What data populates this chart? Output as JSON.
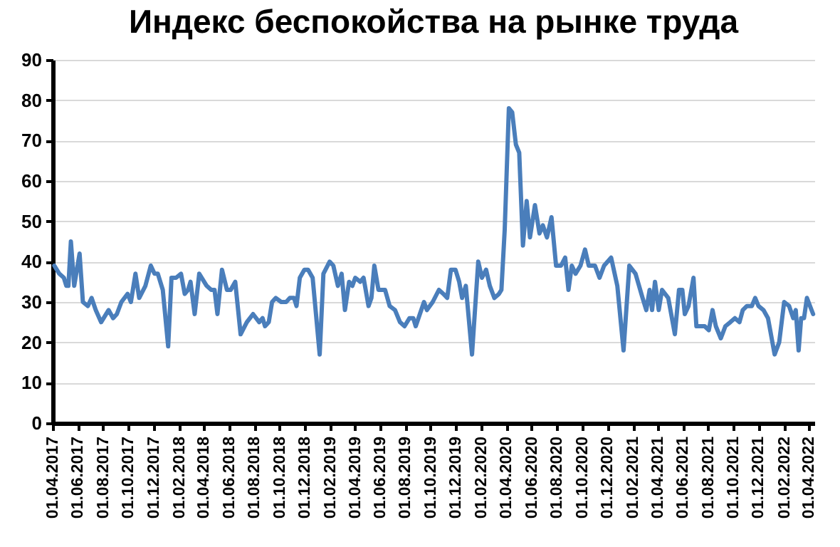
{
  "chart_data": {
    "type": "line",
    "title": "Индекс беспокойства на рынке труда",
    "x": [
      "2017-04-05",
      "2017-04-17",
      "2017-04-28",
      "2017-05-04",
      "2017-05-09",
      "2017-05-15",
      "2017-05-23",
      "2017-06-05",
      "2017-06-13",
      "2017-06-25",
      "2017-07-04",
      "2017-07-14",
      "2017-07-27",
      "2017-08-14",
      "2017-08-25",
      "2017-09-03",
      "2017-09-14",
      "2017-09-29",
      "2017-10-07",
      "2017-10-18",
      "2017-10-27",
      "2017-11-11",
      "2017-11-24",
      "2017-12-03",
      "2017-12-11",
      "2017-12-23",
      "2018-01-05",
      "2018-01-13",
      "2018-01-24",
      "2018-02-05",
      "2018-02-14",
      "2018-02-22",
      "2018-02-28",
      "2018-03-10",
      "2018-03-21",
      "2018-04-08",
      "2018-04-19",
      "2018-04-27",
      "2018-05-04",
      "2018-05-15",
      "2018-05-27",
      "2018-06-05",
      "2018-06-16",
      "2018-06-29",
      "2018-07-14",
      "2018-07-29",
      "2018-08-13",
      "2018-08-21",
      "2018-08-27",
      "2018-09-05",
      "2018-09-13",
      "2018-09-22",
      "2018-10-05",
      "2018-10-17",
      "2018-10-26",
      "2018-11-05",
      "2018-11-11",
      "2018-11-19",
      "2018-11-30",
      "2018-12-09",
      "2018-12-20",
      "2019-01-06",
      "2019-01-15",
      "2019-01-30",
      "2019-02-08",
      "2019-02-19",
      "2019-02-28",
      "2019-03-08",
      "2019-03-18",
      "2019-03-26",
      "2019-04-02",
      "2019-04-14",
      "2019-04-22",
      "2019-05-04",
      "2019-05-11",
      "2019-05-18",
      "2019-05-28",
      "2019-06-13",
      "2019-06-24",
      "2019-07-07",
      "2019-07-19",
      "2019-07-30",
      "2019-08-11",
      "2019-08-20",
      "2019-08-26",
      "2019-09-15",
      "2019-09-22",
      "2019-10-06",
      "2019-10-21",
      "2019-11-01",
      "2019-11-10",
      "2019-11-19",
      "2019-11-30",
      "2019-12-09",
      "2019-12-16",
      "2019-12-25",
      "2020-01-09",
      "2020-01-24",
      "2020-02-02",
      "2020-02-12",
      "2020-02-21",
      "2020-03-03",
      "2020-03-14",
      "2020-03-20",
      "2020-03-28",
      "2020-04-07",
      "2020-04-15",
      "2020-04-24",
      "2020-05-02",
      "2020-05-11",
      "2020-05-20",
      "2020-05-28",
      "2020-06-09",
      "2020-06-20",
      "2020-06-28",
      "2020-07-08",
      "2020-07-19",
      "2020-07-30",
      "2020-08-11",
      "2020-08-21",
      "2020-08-29",
      "2020-09-06",
      "2020-09-15",
      "2020-09-27",
      "2020-10-08",
      "2020-10-17",
      "2020-11-01",
      "2020-11-12",
      "2020-11-23",
      "2020-12-10",
      "2020-12-25",
      "2021-01-09",
      "2021-01-23",
      "2021-02-07",
      "2021-02-24",
      "2021-03-05",
      "2021-03-13",
      "2021-03-19",
      "2021-03-26",
      "2021-04-04",
      "2021-04-12",
      "2021-04-27",
      "2021-05-13",
      "2021-05-23",
      "2021-05-31",
      "2021-06-06",
      "2021-06-15",
      "2021-06-27",
      "2021-07-04",
      "2021-07-14",
      "2021-07-24",
      "2021-08-03",
      "2021-08-12",
      "2021-08-20",
      "2021-09-01",
      "2021-09-12",
      "2021-09-24",
      "2021-10-05",
      "2021-10-16",
      "2021-10-24",
      "2021-11-03",
      "2021-11-15",
      "2021-11-23",
      "2021-12-01",
      "2021-12-13",
      "2021-12-24",
      "2022-01-09",
      "2022-01-20",
      "2022-02-01",
      "2022-02-13",
      "2022-02-23",
      "2022-03-01",
      "2022-03-08",
      "2022-03-14",
      "2022-03-21",
      "2022-03-28",
      "2022-04-12"
    ],
    "series": [
      {
        "color": "#4a7ebb",
        "values": [
          39,
          37,
          36,
          34,
          34,
          45,
          34,
          42,
          30,
          29,
          31,
          28,
          25,
          28,
          26,
          27,
          30,
          32,
          30,
          37,
          31,
          34,
          39,
          37,
          37,
          33,
          19,
          36,
          36,
          37,
          32,
          33,
          35,
          27,
          37,
          34,
          33,
          33,
          27,
          38,
          33,
          33,
          35,
          22,
          25,
          27,
          25,
          26,
          24,
          25,
          30,
          31,
          30,
          30,
          31,
          31,
          29,
          36,
          38,
          38,
          36,
          17,
          37,
          40,
          39,
          34,
          37,
          28,
          35,
          34,
          36,
          35,
          36,
          29,
          31,
          39,
          33,
          33,
          29,
          28,
          25,
          24,
          26,
          26,
          24,
          30,
          28,
          30,
          33,
          32,
          31,
          38,
          38,
          35,
          31,
          34,
          17,
          40,
          36,
          38,
          34,
          31,
          32,
          33,
          48,
          78,
          77,
          69,
          67,
          44,
          55,
          46,
          54,
          47,
          49,
          46,
          51,
          39,
          39,
          41,
          33,
          39,
          37,
          39,
          43,
          39,
          39,
          36,
          39,
          41,
          34,
          18,
          39,
          37,
          31,
          28,
          33,
          28,
          35,
          28,
          33,
          31,
          22,
          33,
          33,
          27,
          29,
          36,
          24,
          24,
          24,
          23,
          28,
          24,
          21,
          24,
          25,
          26,
          25,
          28,
          29,
          29,
          31,
          29,
          28,
          26,
          17,
          20,
          30,
          29,
          26,
          28,
          18,
          26,
          26,
          31,
          27
        ]
      }
    ],
    "xlim": [
      "2017-04-01",
      "2022-04-15"
    ],
    "xticks": [
      {
        "value": "2017-04-01",
        "label": "01.04.2017"
      },
      {
        "value": "2017-06-01",
        "label": "01.06.2017"
      },
      {
        "value": "2017-08-01",
        "label": "01.08.2017"
      },
      {
        "value": "2017-10-01",
        "label": "01.10.2017"
      },
      {
        "value": "2017-12-01",
        "label": "01.12.2017"
      },
      {
        "value": "2018-02-01",
        "label": "01.02.2018"
      },
      {
        "value": "2018-04-01",
        "label": "01.04.2018"
      },
      {
        "value": "2018-06-01",
        "label": "01.06.2018"
      },
      {
        "value": "2018-08-01",
        "label": "01.08.2018"
      },
      {
        "value": "2018-10-01",
        "label": "01.10.2018"
      },
      {
        "value": "2018-12-01",
        "label": "01.12.2018"
      },
      {
        "value": "2019-02-01",
        "label": "01.02.2019"
      },
      {
        "value": "2019-04-01",
        "label": "01.04.2019"
      },
      {
        "value": "2019-06-01",
        "label": "01.06.2019"
      },
      {
        "value": "2019-08-01",
        "label": "01.08.2019"
      },
      {
        "value": "2019-10-01",
        "label": "01.10.2019"
      },
      {
        "value": "2019-12-01",
        "label": "01.12.2019"
      },
      {
        "value": "2020-02-01",
        "label": "01.02.2020"
      },
      {
        "value": "2020-04-01",
        "label": "01.04.2020"
      },
      {
        "value": "2020-06-01",
        "label": "01.06.2020"
      },
      {
        "value": "2020-08-01",
        "label": "01.08.2020"
      },
      {
        "value": "2020-10-01",
        "label": "01.10.2020"
      },
      {
        "value": "2020-12-01",
        "label": "01.12.2020"
      },
      {
        "value": "2021-02-01",
        "label": "01.02.2021"
      },
      {
        "value": "2021-04-01",
        "label": "01.04.2021"
      },
      {
        "value": "2021-06-01",
        "label": "01.06.2021"
      },
      {
        "value": "2021-08-01",
        "label": "01.08.2021"
      },
      {
        "value": "2021-10-01",
        "label": "01.10.2021"
      },
      {
        "value": "2021-12-01",
        "label": "01.12.2021"
      },
      {
        "value": "2022-02-01",
        "label": "01.02.2022"
      },
      {
        "value": "2022-04-01",
        "label": "01.04.2022"
      }
    ],
    "ylim": [
      0,
      90
    ],
    "yticks": [
      0,
      10,
      20,
      30,
      40,
      50,
      60,
      70,
      80,
      90
    ],
    "grid": "y",
    "legend": false,
    "marker": "none",
    "line_style": "solid"
  }
}
